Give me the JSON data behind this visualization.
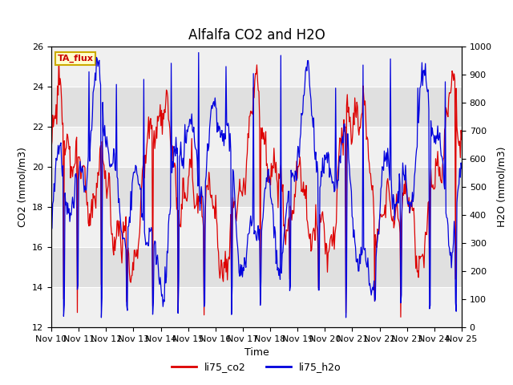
{
  "title": "Alfalfa CO2 and H2O",
  "xlabel": "Time",
  "ylabel_left": "CO2 (mmol/m3)",
  "ylabel_right": "H2O (mmol/m3)",
  "ylim_left": [
    12,
    26
  ],
  "ylim_right": [
    0,
    1000
  ],
  "yticks_left": [
    12,
    14,
    16,
    18,
    20,
    22,
    24,
    26
  ],
  "yticks_right": [
    0,
    100,
    200,
    300,
    400,
    500,
    600,
    700,
    800,
    900,
    1000
  ],
  "xtick_labels": [
    "Nov 10",
    "Nov 11",
    "Nov 12",
    "Nov 13",
    "Nov 14",
    "Nov 15",
    "Nov 16",
    "Nov 17",
    "Nov 18",
    "Nov 19",
    "Nov 20",
    "Nov 21",
    "Nov 22",
    "Nov 23",
    "Nov 24",
    "Nov 25"
  ],
  "annotation_text": "TA_flux",
  "annotation_bg": "#ffffcc",
  "annotation_border": "#ccaa00",
  "line_co2_color": "#dd0000",
  "line_h2o_color": "#0000dd",
  "legend_co2": "li75_co2",
  "legend_h2o": "li75_h2o",
  "background_color": "#ffffff",
  "plot_bg_light": "#f0f0f0",
  "plot_bg_dark": "#e0e0e0",
  "grid_color": "#ffffff",
  "title_fontsize": 12,
  "axis_label_fontsize": 9,
  "tick_fontsize": 8
}
